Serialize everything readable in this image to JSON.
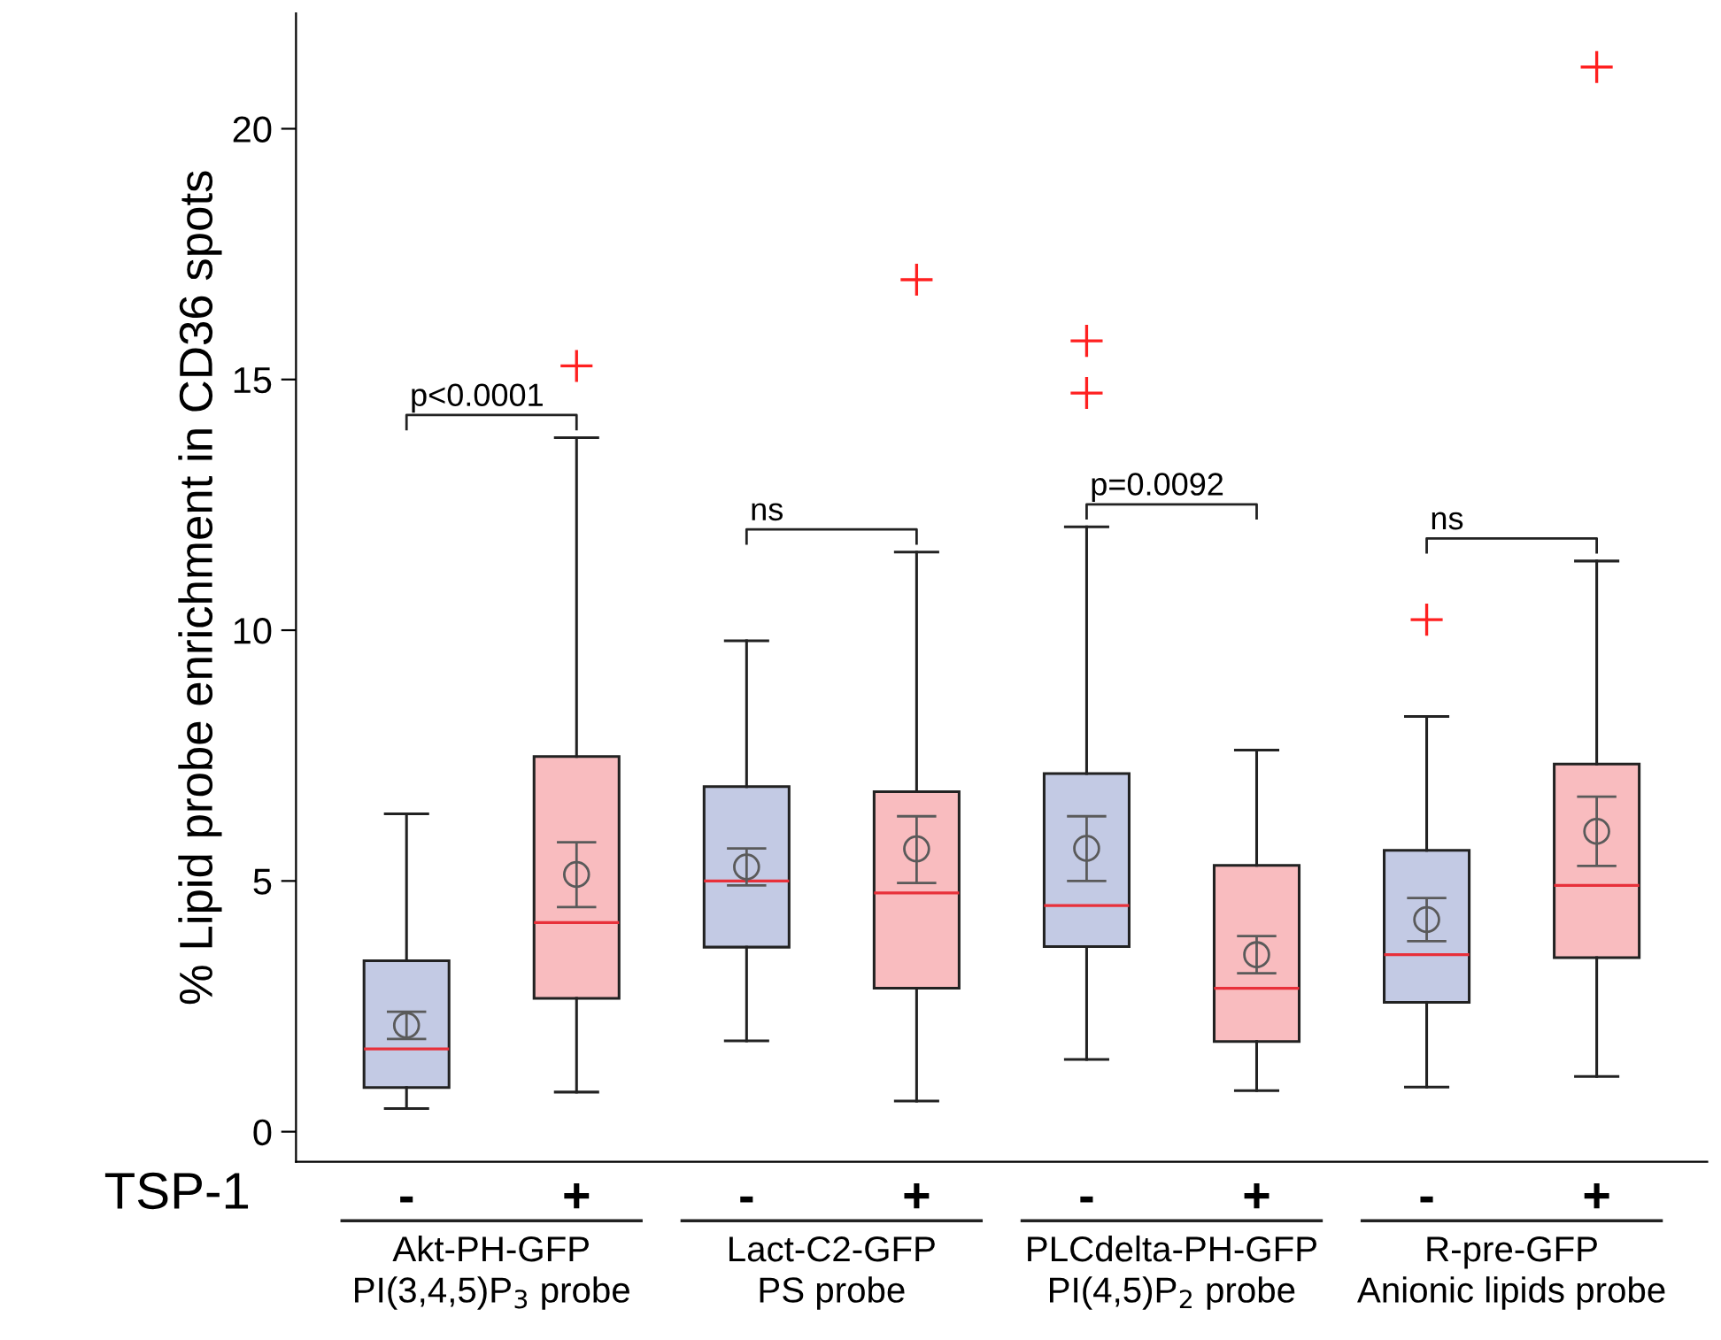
{
  "chart_data": {
    "type": "box",
    "ylabel": "% Lipid probe enrichment in CD36 spots",
    "xlabel": "TSP-1",
    "categories": [
      "-",
      "+",
      "-",
      "+",
      "-",
      "+",
      "-",
      "+"
    ],
    "colors": [
      "#c3cae4",
      "#f9bcbf",
      "#c3cae4",
      "#f9bcbf",
      "#c3cae4",
      "#f9bcbf",
      "#c3cae4",
      "#f9bcbf"
    ],
    "boxes": [
      {
        "low": 0.46,
        "q1": 0.88,
        "median": 1.65,
        "q3": 3.41,
        "high": 6.34
      },
      {
        "low": 0.79,
        "q1": 2.66,
        "median": 4.17,
        "q3": 7.48,
        "high": 13.84,
        "outliers": [
          15.27
        ]
      },
      {
        "low": 1.81,
        "q1": 3.68,
        "median": 5.0,
        "q3": 6.88,
        "high": 9.79
      },
      {
        "low": 0.61,
        "q1": 2.86,
        "median": 4.76,
        "q3": 6.78,
        "high": 11.56,
        "outliers": [
          16.99
        ]
      },
      {
        "low": 1.44,
        "q1": 3.69,
        "median": 4.51,
        "q3": 7.14,
        "high": 12.06,
        "outliers": [
          14.73,
          15.77
        ]
      },
      {
        "low": 0.82,
        "q1": 1.8,
        "median": 2.86,
        "q3": 5.31,
        "high": 7.61
      },
      {
        "low": 0.89,
        "q1": 2.58,
        "median": 3.53,
        "q3": 5.61,
        "high": 8.28,
        "outliers": [
          10.21
        ]
      },
      {
        "low": 1.1,
        "q1": 3.47,
        "median": 4.91,
        "q3": 7.33,
        "high": 11.38,
        "outliers": [
          21.23
        ]
      }
    ],
    "series": [
      {
        "type": "scatter",
        "color": "#5a5a5a",
        "marker": "circle",
        "values": [
          2.12,
          5.13,
          5.28,
          5.64,
          5.65,
          3.53,
          4.23,
          5.99
        ],
        "errors": [
          [
            1.85,
            2.39
          ],
          [
            4.48,
            5.77
          ],
          [
            4.91,
            5.65
          ],
          [
            4.96,
            6.29
          ],
          [
            5.0,
            6.29
          ],
          [
            3.16,
            3.9
          ],
          [
            3.8,
            4.66
          ],
          [
            5.3,
            6.68
          ]
        ]
      }
    ],
    "ylim": [
      -0.6,
      22.3
    ],
    "yticks": [
      0,
      5,
      10,
      15,
      20
    ],
    "annotations": [
      "p<0.0001",
      "ns",
      "p=0.0092",
      "ns",
      "Akt-PH-GFP\nPI(3,4,5)P$_{3}$ probe",
      "Lact-C2-GFP\nPS probe",
      "PLCdelta-PH-GFP\nPI(4,5)P$_{2}$ probe",
      "R-pre-GFP\nAnionic lipids probe"
    ]
  }
}
